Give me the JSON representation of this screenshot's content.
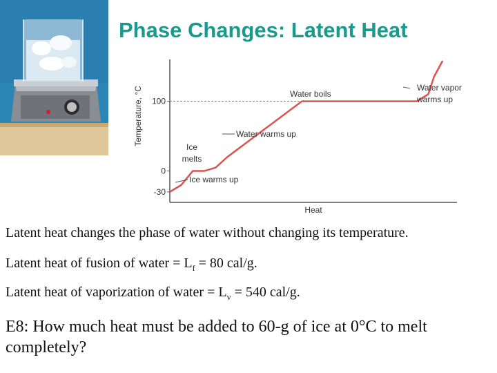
{
  "title": "Phase Changes: Latent Heat",
  "chart_data": {
    "type": "line",
    "xlabel": "Heat",
    "ylabel": "Temperature, °C",
    "yticks": [
      -30,
      0,
      100
    ],
    "xlim": [
      0,
      100
    ],
    "ylim": [
      -45,
      160
    ],
    "grid": false,
    "series": [
      {
        "x": [
          0,
          4,
          8,
          12,
          16,
          20,
          46,
          48,
          86,
          90,
          92,
          95
        ],
        "y": [
          -30,
          -20,
          0,
          0,
          5,
          20,
          100,
          100,
          100,
          110,
          135,
          158
        ]
      }
    ],
    "annotations": [
      {
        "text": "Ice warms up",
        "x": 2,
        "y": -18
      },
      {
        "text": "Ice",
        "x": 8,
        "y": 0
      },
      {
        "text": "melts",
        "x": 8,
        "y": 0
      },
      {
        "text": "Water warms up",
        "x": 30,
        "y": 60
      },
      {
        "text": "Water boils",
        "x": 66,
        "y": 100
      },
      {
        "text": "Water vapor",
        "x": 93,
        "y": 140
      },
      {
        "text": "warms up",
        "x": 93,
        "y": 140
      }
    ]
  },
  "lines": {
    "l1": "Latent heat changes the phase of water without changing its temperature.",
    "l2a": "Latent heat of fusion of water = L",
    "l2sub": "f",
    "l2b": " = 80 cal/g.",
    "l3a": "Latent heat of vaporization of water = L",
    "l3sub": "v",
    "l3b": " = 540 cal/g."
  },
  "question": "E8: How much heat must be added to 60-g of ice at 0°C to melt completely?"
}
